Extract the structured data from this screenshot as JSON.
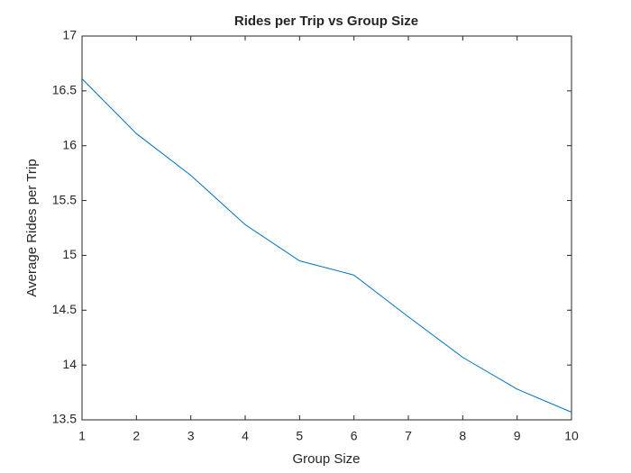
{
  "chart_data": {
    "type": "line",
    "title": "Rides per Trip vs Group Size",
    "x_label": "Group Size",
    "y_label": "Average Rides per Trip",
    "x": [
      1,
      2,
      3,
      4,
      5,
      6,
      7,
      8,
      9,
      10
    ],
    "series": [
      {
        "color": "#0072bd",
        "values": [
          16.61,
          16.11,
          15.73,
          15.28,
          14.95,
          14.82,
          14.44,
          14.07,
          13.78,
          13.57
        ]
      }
    ],
    "xlim": [
      1,
      10
    ],
    "xticks": [
      1,
      2,
      3,
      4,
      5,
      6,
      7,
      8,
      9,
      10
    ],
    "ylim": [
      13.5,
      17
    ],
    "yticks": [
      13.5,
      14,
      14.5,
      15,
      15.5,
      16,
      16.5,
      17
    ],
    "grid": false
  }
}
